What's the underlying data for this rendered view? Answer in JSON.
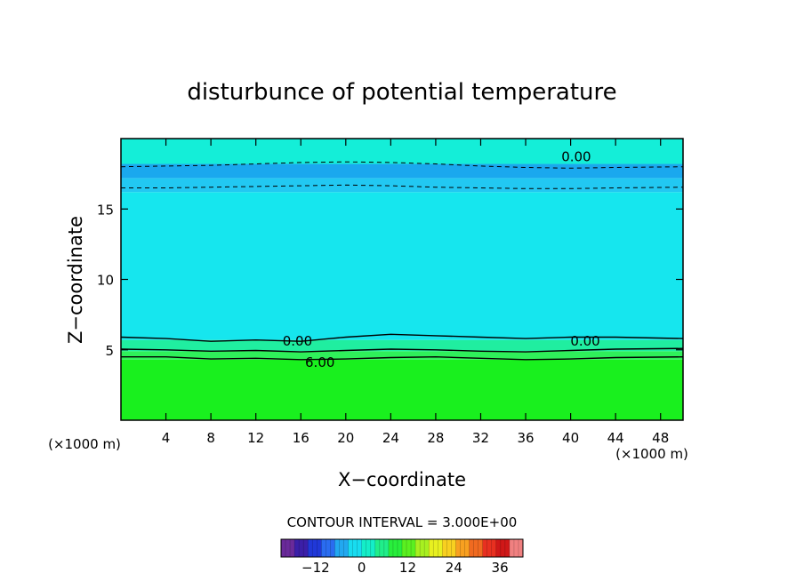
{
  "chart_data": {
    "type": "heatmap",
    "title": "disturbunce of potential temperature",
    "xlabel": "X−coordinate",
    "ylabel": "Z−coordinate",
    "x_unit": "(×1000 m)",
    "x_unit_right": "(×1000 m)",
    "xlim": [
      0,
      50
    ],
    "ylim": [
      0,
      20
    ],
    "x_ticks": [
      4,
      8,
      12,
      16,
      20,
      24,
      28,
      32,
      36,
      40,
      44,
      48
    ],
    "x_tick_labels": [
      "4",
      "8",
      "12",
      "16",
      "20",
      "24",
      "28",
      "32",
      "36",
      "40",
      "44",
      "48"
    ],
    "y_ticks": [
      5,
      10,
      15
    ],
    "y_tick_labels": [
      "5",
      "10",
      "15"
    ],
    "bands": [
      {
        "z_from": 0,
        "z_to": 4.3,
        "value": 10.5,
        "color": "#19f01e"
      },
      {
        "z_from": 4.3,
        "z_to": 4.9,
        "value": 7.5,
        "color": "#2ff05a"
      },
      {
        "z_from": 4.9,
        "z_to": 5.7,
        "value": 4.5,
        "color": "#20eea0"
      },
      {
        "z_from": 5.7,
        "z_to": 16.2,
        "value": -1.5,
        "color": "#16e6ee"
      },
      {
        "z_from": 16.2,
        "z_to": 17.2,
        "value": -3.5,
        "color": "#22c8f2"
      },
      {
        "z_from": 17.2,
        "z_to": 18.2,
        "value": -5.5,
        "color": "#1aa8ee"
      },
      {
        "z_from": 18.2,
        "z_to": 20,
        "value": 1.5,
        "color": "#14eed8"
      }
    ],
    "contours": [
      {
        "value": 6.0,
        "label": "6.00",
        "style": "solid",
        "z": [
          4.5,
          4.5,
          4.35,
          4.4,
          4.3,
          4.35,
          4.45,
          4.5,
          4.4,
          4.3,
          4.35,
          4.45,
          4.5
        ]
      },
      {
        "value": 3.0,
        "label": "",
        "style": "solid",
        "z": [
          5.05,
          5.0,
          4.9,
          4.95,
          4.85,
          4.95,
          5.05,
          5.0,
          4.9,
          4.85,
          4.95,
          5.05,
          5.1
        ]
      },
      {
        "value": 0.0,
        "label": "0.00",
        "style": "solid",
        "z": [
          5.9,
          5.8,
          5.6,
          5.7,
          5.6,
          5.9,
          6.1,
          6.0,
          5.9,
          5.8,
          5.9,
          5.9,
          5.8
        ]
      },
      {
        "value": -3.0,
        "label": "",
        "style": "dashed",
        "z": [
          16.5,
          16.5,
          16.55,
          16.6,
          16.65,
          16.7,
          16.65,
          16.55,
          16.5,
          16.45,
          16.45,
          16.5,
          16.55
        ]
      },
      {
        "value": -3.0,
        "label": "",
        "style": "dashed",
        "z": [
          18.0,
          18.05,
          18.1,
          18.2,
          18.3,
          18.35,
          18.3,
          18.2,
          18.05,
          17.95,
          17.9,
          17.95,
          18.0
        ]
      }
    ],
    "contour_x": [
      0,
      4,
      8,
      12,
      16,
      20,
      24,
      28,
      32,
      36,
      40,
      44,
      50
    ],
    "contour_labels": [
      {
        "text": "0.00",
        "x": 40.5,
        "z": 18.7
      },
      {
        "text": "0.00",
        "x": 15.7,
        "z": 5.6
      },
      {
        "text": "0.00",
        "x": 41.3,
        "z": 5.6
      },
      {
        "text": "6.00",
        "x": 17.7,
        "z": 4.1
      }
    ],
    "contour_interval_label": "CONTOUR INTERVAL = 3.000E+00",
    "colorbar": {
      "range": [
        -21,
        42
      ],
      "ticks": [
        -12,
        0,
        12,
        24,
        36
      ],
      "tick_labels": [
        "−12",
        "0",
        "12",
        "24",
        "36"
      ],
      "colors": [
        "#6a2a9a",
        "#3b1fa8",
        "#2038d8",
        "#2a6cf0",
        "#22a8f0",
        "#18dcf0",
        "#14eec8",
        "#20ee8a",
        "#28ee3c",
        "#5af020",
        "#a8f020",
        "#e8f020",
        "#f8d020",
        "#f8a020",
        "#f06a20",
        "#e83020",
        "#d01818",
        "#f08080"
      ]
    }
  }
}
